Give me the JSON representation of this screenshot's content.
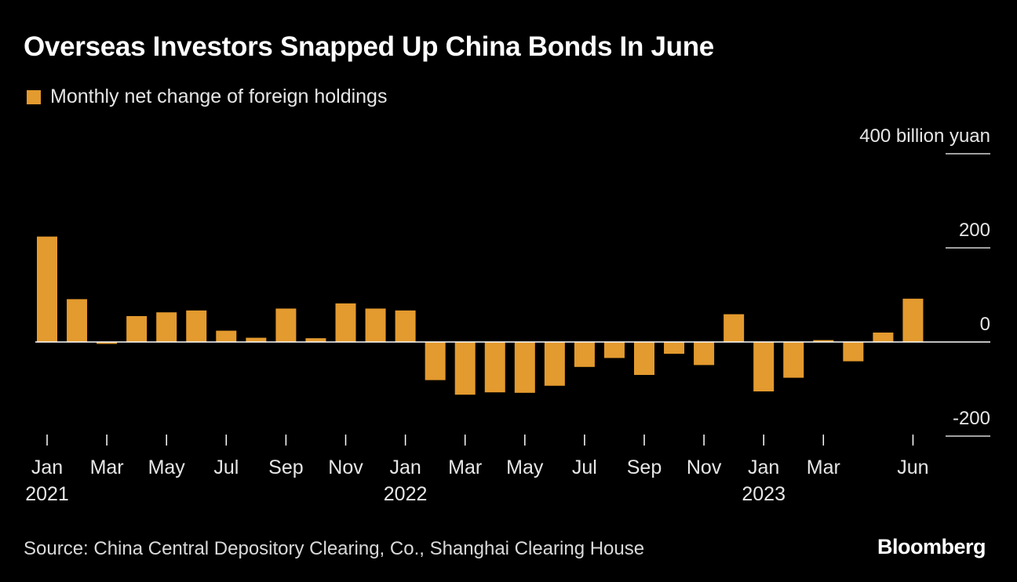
{
  "title": "Overseas Investors Snapped Up China Bonds In June",
  "legend_label": "Monthly net change of foreign holdings",
  "source": "Source: China Central Depository Clearing, Co., Shanghai Clearing House",
  "logo": "Bloomberg",
  "colors": {
    "bar": "#e39a2e",
    "background": "#000000",
    "text": "#ffffff",
    "grid": "#ffffff"
  },
  "chart_data": {
    "type": "bar",
    "title": "Overseas Investors Snapped Up China Bonds In June",
    "series_name": "Monthly net change of foreign holdings",
    "unit": "billion yuan",
    "ylim": [
      -200,
      400
    ],
    "yticks": [
      {
        "value": 400,
        "label": "400 billion yuan"
      },
      {
        "value": 200,
        "label": "200"
      },
      {
        "value": 0,
        "label": "0"
      },
      {
        "value": -200,
        "label": "-200"
      }
    ],
    "categories": [
      "Jan 2021",
      "Feb 2021",
      "Mar 2021",
      "Apr 2021",
      "May 2021",
      "Jun 2021",
      "Jul 2021",
      "Aug 2021",
      "Sep 2021",
      "Oct 2021",
      "Nov 2021",
      "Dec 2021",
      "Jan 2022",
      "Feb 2022",
      "Mar 2022",
      "Apr 2022",
      "May 2022",
      "Jun 2022",
      "Jul 2022",
      "Aug 2022",
      "Sep 2022",
      "Oct 2022",
      "Nov 2022",
      "Dec 2022",
      "Jan 2023",
      "Feb 2023",
      "Mar 2023",
      "Apr 2023",
      "May 2023",
      "Jun 2023"
    ],
    "values": [
      224,
      91,
      -4,
      55,
      63,
      67,
      24,
      9,
      71,
      8,
      82,
      71,
      67,
      -81,
      -112,
      -107,
      -108,
      -93,
      -53,
      -34,
      -70,
      -25,
      -49,
      59,
      -105,
      -76,
      4,
      -41,
      20,
      92
    ],
    "xticks": [
      {
        "index": 0,
        "label": "Jan",
        "year": "2021"
      },
      {
        "index": 2,
        "label": "Mar"
      },
      {
        "index": 4,
        "label": "May"
      },
      {
        "index": 6,
        "label": "Jul"
      },
      {
        "index": 8,
        "label": "Sep"
      },
      {
        "index": 10,
        "label": "Nov"
      },
      {
        "index": 12,
        "label": "Jan",
        "year": "2022"
      },
      {
        "index": 14,
        "label": "Mar"
      },
      {
        "index": 16,
        "label": "May"
      },
      {
        "index": 18,
        "label": "Jul"
      },
      {
        "index": 20,
        "label": "Sep"
      },
      {
        "index": 22,
        "label": "Nov"
      },
      {
        "index": 24,
        "label": "Jan",
        "year": "2023"
      },
      {
        "index": 26,
        "label": "Mar"
      },
      {
        "index": 29,
        "label": "Jun"
      }
    ]
  }
}
